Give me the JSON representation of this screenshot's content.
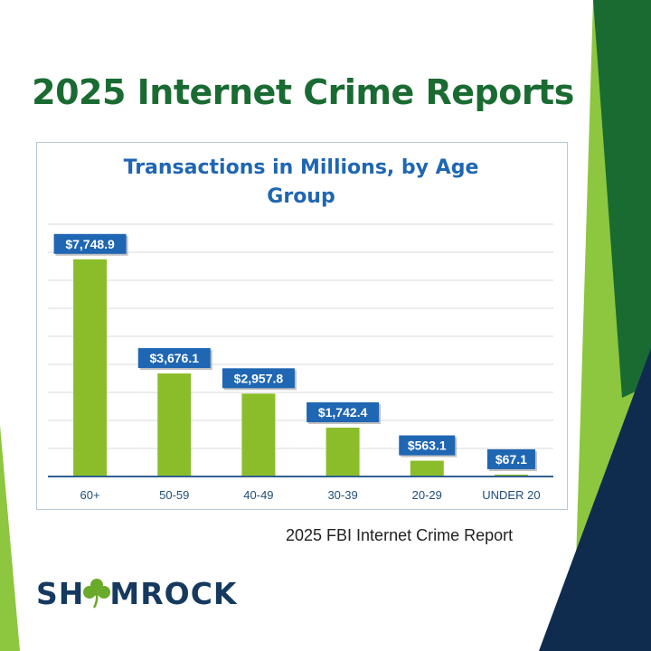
{
  "title": "2025 Internet Crime Reports",
  "source": "2025 FBI Internet Crime Report",
  "logo": {
    "text_before": "SH",
    "text_after": "MROCK",
    "icon": "shamrock-icon"
  },
  "colors": {
    "title": "#1a6b32",
    "chart_title": "#1f66b3",
    "bar": "#8bbd2a",
    "label_bg": "#1f66b3",
    "dark_green": "#1a6b32",
    "light_green": "#8dc63f",
    "navy": "#0f2c4f"
  },
  "chart_data": {
    "type": "bar",
    "title_lines": [
      "Transactions in Millions, by Age",
      "Group"
    ],
    "categories": [
      "60+",
      "50-59",
      "40-49",
      "30-39",
      "20-29",
      "UNDER 20"
    ],
    "values": [
      7748.9,
      3676.1,
      2957.8,
      1742.4,
      563.1,
      67.1
    ],
    "value_labels": [
      "$7,748.9",
      "$3,676.1",
      "$2,957.8",
      "$1,742.4",
      "$563.1",
      "$67.1"
    ],
    "xlabel": "",
    "ylabel": "",
    "ylim": [
      0,
      9000
    ],
    "grid": true,
    "legend": "none"
  }
}
